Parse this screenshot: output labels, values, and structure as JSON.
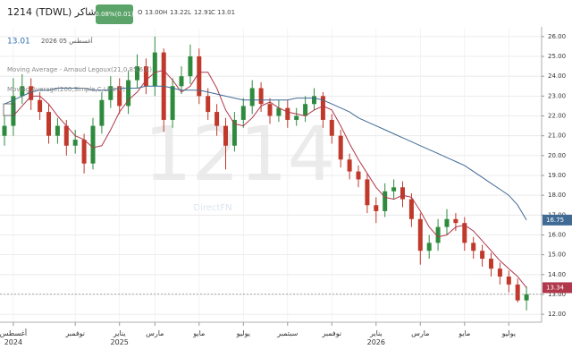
{
  "chart_data": {
    "type": "candlestick",
    "title": "1214 (TDWL) شاكر",
    "change_badge": "0.08%(0.01)",
    "ohlc_header": {
      "o_label": "O",
      "o": "13.00",
      "h_label": "H",
      "h": "13.22",
      "l_label": "L",
      "l": "12.91",
      "c_label": "C",
      "c": "13.01"
    },
    "last_price": 13.01,
    "last_price_label": "13.01",
    "date": "أغسطس 05 2026",
    "watermark": "1214",
    "brand": "DirectFN",
    "up_color": "#2e8b3e",
    "down_color": "#c0392b",
    "categories": [
      null,
      "أغسطس\n2024",
      null,
      null,
      null,
      null,
      null,
      null,
      "نوفمبر",
      null,
      null,
      null,
      null,
      "يناير\n2025",
      null,
      null,
      null,
      "مارس",
      null,
      null,
      null,
      null,
      "مايو",
      null,
      null,
      null,
      null,
      "يوليو",
      null,
      null,
      null,
      null,
      "سبتمبر",
      null,
      null,
      null,
      null,
      "نوفمبر",
      null,
      null,
      null,
      null,
      "يناير\n2026",
      null,
      null,
      null,
      null,
      "مارس",
      null,
      null,
      null,
      null,
      "مايو",
      null,
      null,
      null,
      null,
      "يوليو",
      null,
      null
    ],
    "open": [
      21.0,
      21.5,
      23.0,
      23.5,
      22.8,
      22.2,
      21.0,
      21.5,
      20.5,
      20.8,
      19.6,
      21.5,
      22.8,
      23.5,
      22.5,
      23.8,
      24.5,
      23.5,
      25.2,
      21.8,
      23.5,
      24.0,
      25.0,
      23.0,
      22.2,
      21.5,
      20.5,
      21.8,
      22.5,
      23.4,
      22.6,
      22.0,
      22.4,
      21.8,
      22.0,
      22.6,
      23.0,
      21.8,
      21.0,
      19.8,
      19.2,
      18.8,
      17.5,
      17.2,
      18.2,
      18.4,
      17.8,
      16.8,
      15.2,
      15.6,
      16.4,
      16.8,
      16.6,
      15.6,
      15.2,
      14.8,
      14.3,
      13.9,
      13.5,
      12.7
    ],
    "high": [
      22.0,
      23.9,
      24.1,
      23.9,
      23.2,
      22.6,
      21.9,
      21.8,
      21.3,
      21.1,
      21.9,
      23.2,
      24.0,
      23.9,
      24.3,
      25.1,
      24.9,
      26.0,
      25.4,
      23.9,
      24.5,
      25.6,
      25.4,
      23.4,
      22.6,
      21.9,
      22.2,
      22.9,
      23.8,
      23.7,
      22.9,
      22.8,
      22.8,
      22.4,
      23.0,
      23.4,
      23.2,
      22.1,
      21.3,
      20.1,
      19.5,
      19.1,
      17.9,
      18.6,
      18.8,
      18.7,
      18.1,
      17.1,
      16.0,
      16.8,
      17.3,
      17.1,
      16.9,
      15.9,
      15.5,
      15.1,
      14.6,
      14.2,
      13.8,
      13.4
    ],
    "low": [
      20.5,
      21.0,
      22.6,
      22.3,
      21.8,
      20.6,
      20.6,
      20.0,
      20.1,
      19.1,
      19.3,
      21.1,
      22.4,
      22.1,
      22.1,
      23.4,
      23.1,
      23.0,
      21.2,
      21.4,
      23.1,
      23.6,
      22.6,
      21.8,
      21.0,
      19.3,
      20.2,
      21.4,
      22.1,
      22.2,
      21.6,
      21.7,
      21.4,
      21.5,
      21.7,
      22.3,
      21.4,
      20.6,
      19.4,
      18.8,
      18.4,
      17.1,
      16.6,
      16.9,
      17.8,
      17.4,
      16.4,
      14.5,
      14.8,
      15.2,
      16.0,
      16.2,
      15.2,
      14.8,
      14.4,
      13.9,
      13.5,
      13.1,
      12.6,
      12.2
    ],
    "close": [
      21.5,
      23.0,
      23.5,
      22.8,
      22.2,
      21.0,
      21.5,
      20.5,
      20.8,
      19.6,
      21.5,
      22.8,
      23.5,
      22.5,
      23.8,
      24.5,
      23.5,
      25.2,
      21.8,
      23.5,
      24.0,
      25.0,
      23.0,
      22.2,
      21.5,
      20.5,
      21.8,
      22.5,
      23.4,
      22.6,
      22.0,
      22.4,
      21.8,
      22.0,
      22.6,
      23.0,
      21.8,
      21.0,
      19.8,
      19.2,
      18.8,
      17.5,
      17.2,
      18.2,
      18.4,
      17.8,
      16.8,
      15.2,
      15.6,
      16.4,
      16.8,
      16.6,
      15.6,
      15.2,
      14.8,
      14.3,
      13.9,
      13.5,
      12.7,
      13.01
    ],
    "series": [
      {
        "name": "Moving Average - Arnaud Legoux(21,0.85,6,C)",
        "color": "#b0384a",
        "last_value_label": "13.34",
        "values": [
          null,
          22.0,
          22.5,
          23.0,
          23.0,
          22.6,
          22.0,
          21.5,
          21.0,
          20.8,
          20.4,
          20.5,
          21.3,
          22.2,
          22.8,
          23.2,
          23.8,
          24.2,
          24.3,
          23.8,
          23.2,
          23.5,
          24.2,
          24.2,
          23.4,
          22.3,
          21.6,
          21.5,
          21.9,
          22.5,
          22.7,
          22.4,
          22.2,
          22.1,
          22.0,
          22.3,
          22.5,
          22.3,
          21.5,
          20.6,
          19.8,
          19.1,
          18.4,
          17.9,
          17.8,
          18.0,
          17.9,
          17.2,
          16.4,
          15.9,
          16.0,
          16.4,
          16.5,
          16.2,
          15.7,
          15.2,
          14.7,
          14.3,
          13.9,
          13.34
        ]
      },
      {
        "name": "Moving Average(200,Simple,C,Line,0)",
        "color": "#3f6a94",
        "last_value_label": "16.75",
        "values": [
          22.6,
          22.8,
          23.0,
          23.2,
          23.3,
          23.3,
          23.4,
          23.4,
          23.4,
          23.4,
          23.3,
          23.3,
          23.3,
          23.4,
          23.4,
          23.4,
          23.5,
          23.5,
          23.5,
          23.4,
          23.3,
          23.3,
          23.3,
          23.2,
          23.1,
          23.0,
          22.9,
          22.8,
          22.8,
          22.8,
          22.8,
          22.8,
          22.8,
          22.9,
          22.9,
          22.9,
          22.8,
          22.6,
          22.4,
          22.2,
          21.9,
          21.7,
          21.5,
          21.3,
          21.1,
          20.9,
          20.7,
          20.5,
          20.3,
          20.1,
          19.9,
          19.7,
          19.5,
          19.2,
          18.9,
          18.6,
          18.3,
          18.0,
          17.5,
          16.75
        ]
      }
    ],
    "ylim": [
      11.6,
      26.4
    ],
    "yticks": [
      {
        "value": 12,
        "label": "12.00"
      },
      {
        "value": 13,
        "label": "13.00"
      },
      {
        "value": 14,
        "label": "14.00"
      },
      {
        "value": 15,
        "label": "15.00"
      },
      {
        "value": 16,
        "label": "16.00"
      },
      {
        "value": 17,
        "label": "17.00"
      },
      {
        "value": 18,
        "label": "18.00"
      },
      {
        "value": 19,
        "label": "19.00"
      },
      {
        "value": 20,
        "label": "20.00"
      },
      {
        "value": 21,
        "label": "21.00"
      },
      {
        "value": 22,
        "label": "22.00"
      },
      {
        "value": 23,
        "label": "23.00"
      },
      {
        "value": 24,
        "label": "24.00"
      },
      {
        "value": 25,
        "label": "25.00"
      },
      {
        "value": 26,
        "label": "26.00"
      }
    ],
    "grid": true
  }
}
